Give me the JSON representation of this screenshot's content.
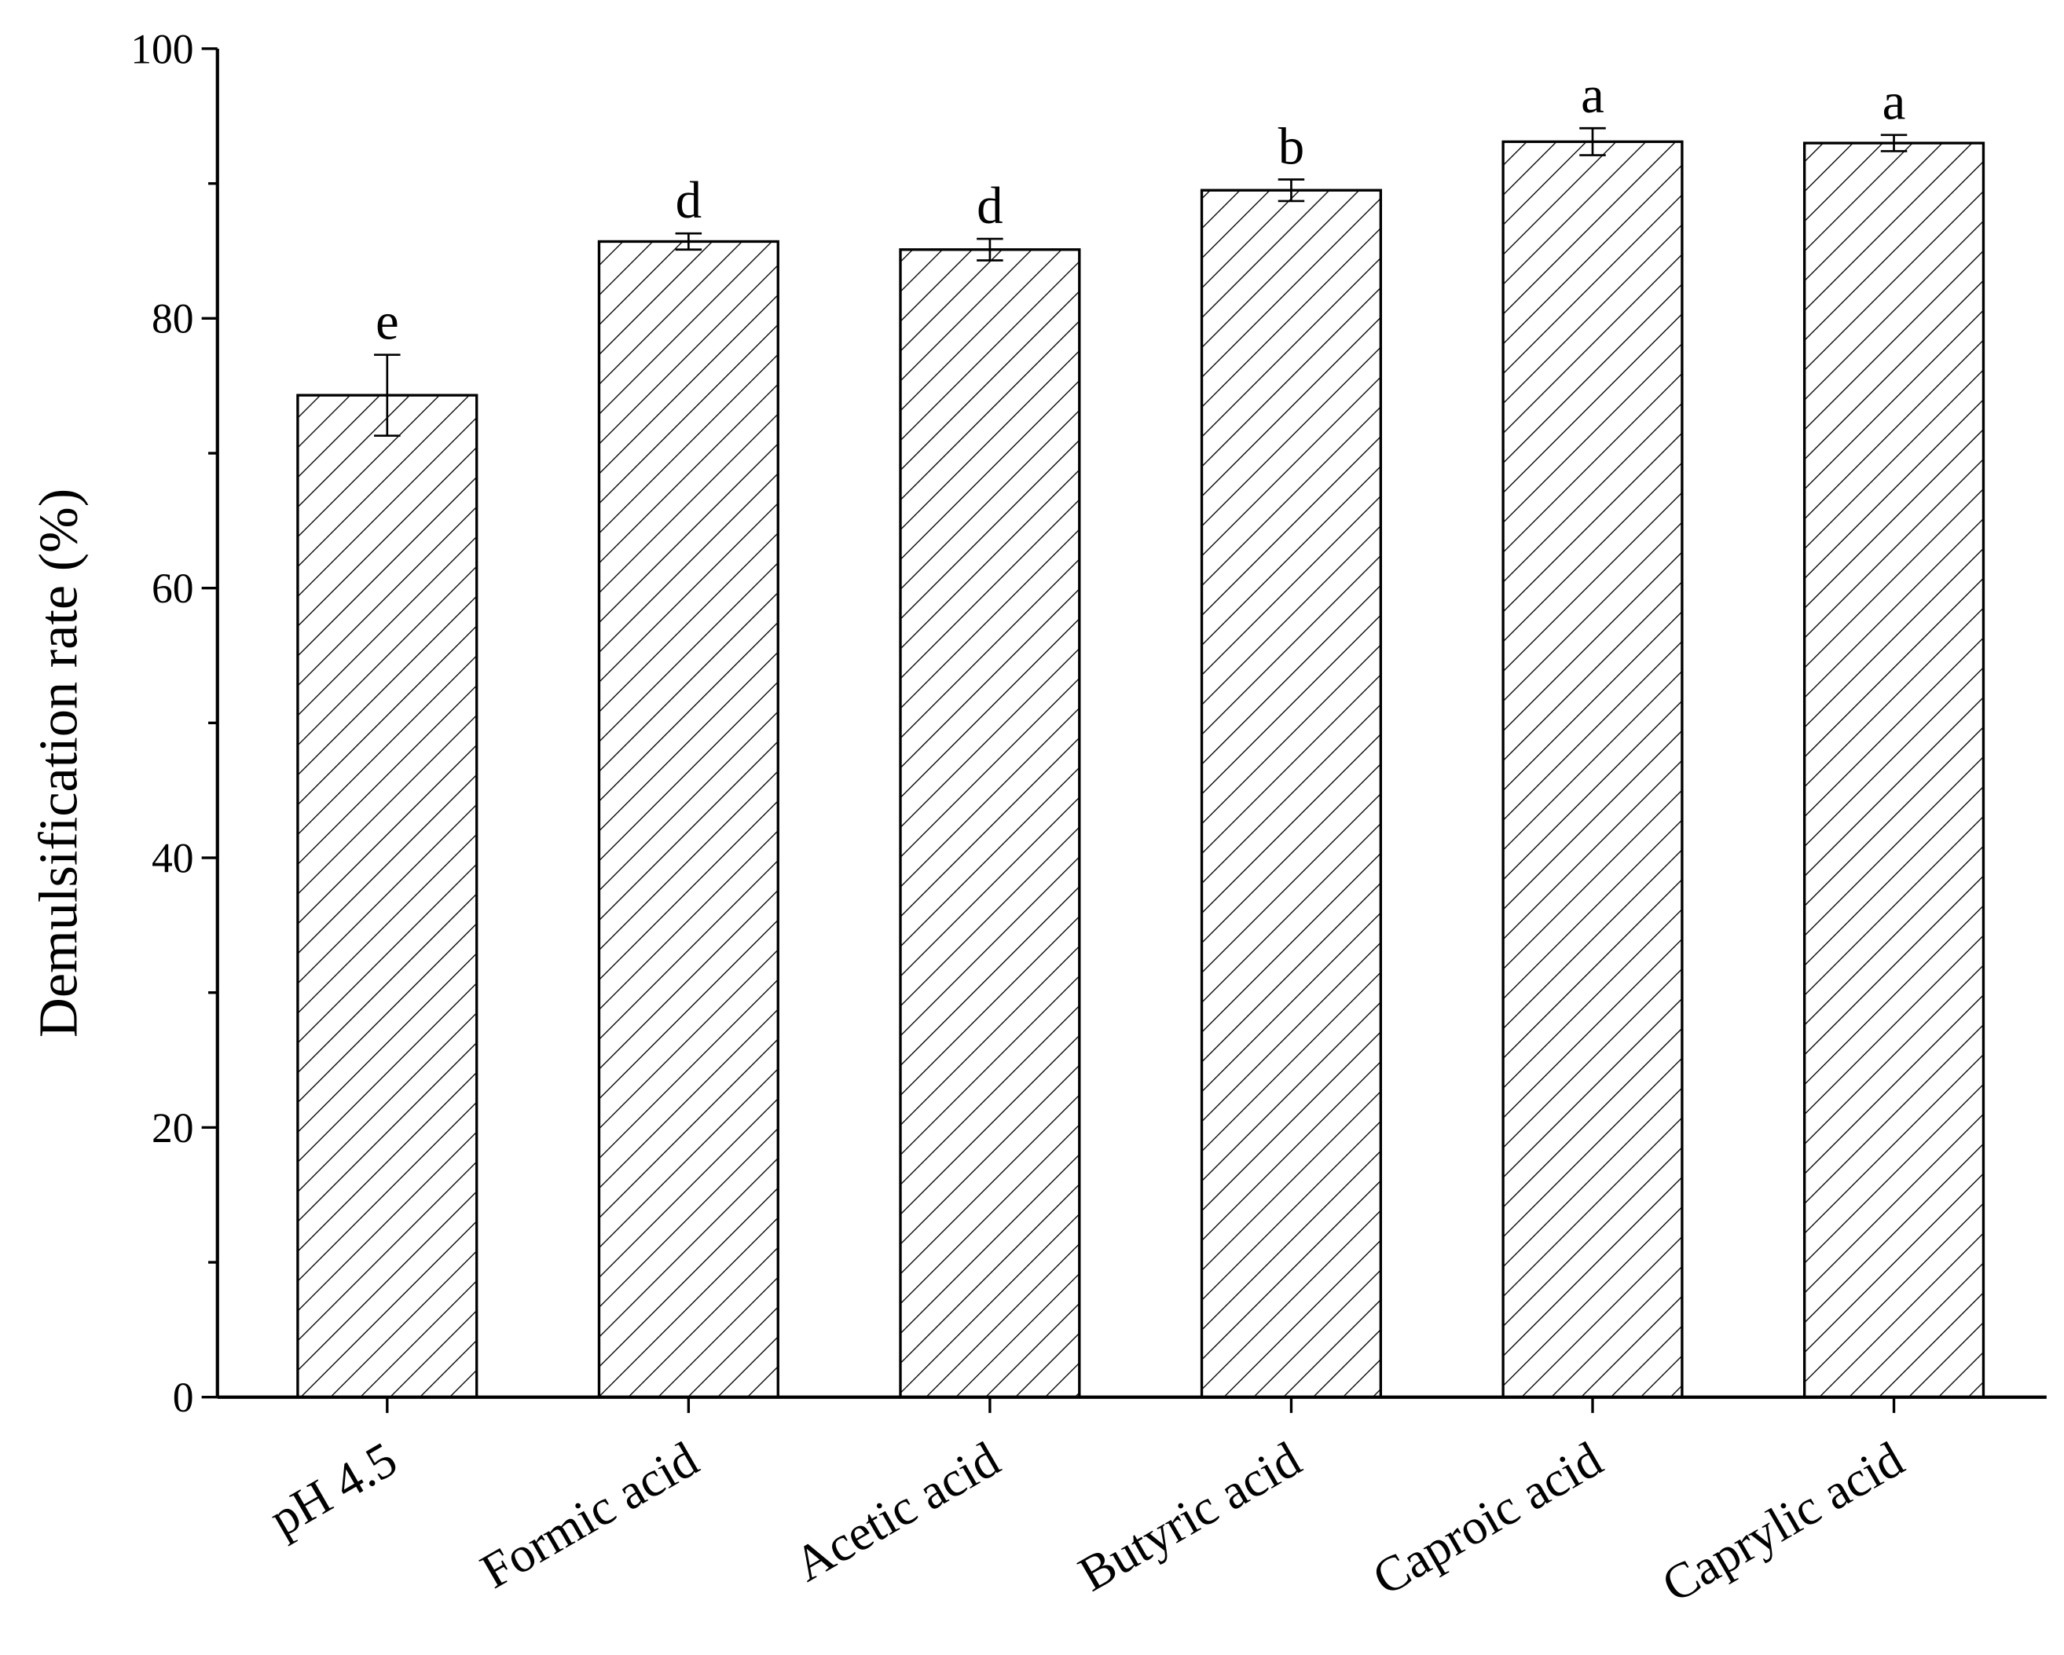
{
  "chart_data": {
    "type": "bar",
    "ylabel": "Demulsification rate (%)",
    "categories": [
      "pH 4.5",
      "Formic acid",
      "Acetic acid",
      "Butyric acid",
      "Caproic acid",
      "Caprylic acid"
    ],
    "values": [
      74.3,
      85.7,
      85.1,
      89.5,
      93.1,
      93.0
    ],
    "errors": [
      3.0,
      0.6,
      0.8,
      0.8,
      1.0,
      0.6
    ],
    "annotations": [
      "e",
      "d",
      "d",
      "b",
      "a",
      "a"
    ],
    "color": "#000000",
    "hatch": "diagonal",
    "ylim": [
      0,
      100
    ],
    "yticks": [
      0,
      20,
      40,
      60,
      80,
      100
    ],
    "grid": false
  }
}
